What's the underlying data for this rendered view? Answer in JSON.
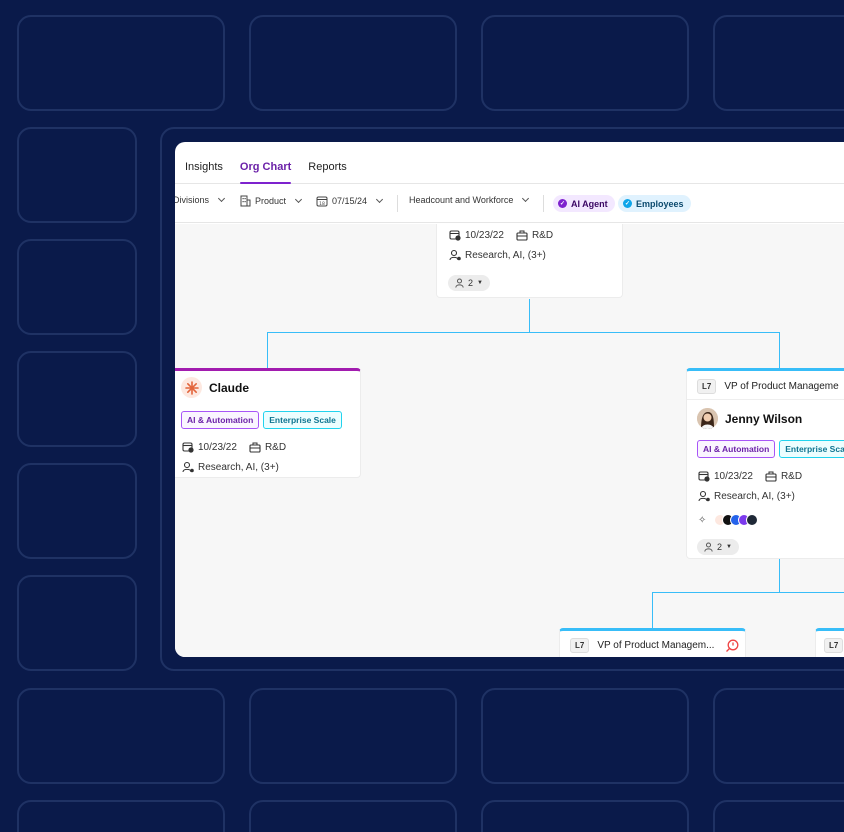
{
  "tabs": [
    {
      "label": "Insights"
    },
    {
      "label": "Org Chart",
      "active": true
    },
    {
      "label": "Reports"
    }
  ],
  "filters": {
    "divisions": "Divisions",
    "product": "Product",
    "date": "07/15/24",
    "headcount": "Headcount and Workforce",
    "chip_ai": "AI Agent",
    "chip_employees": "Employees"
  },
  "cards": {
    "top": {
      "date": "10/23/22",
      "dept": "R&D",
      "skills": "Research, AI, (3+)",
      "reports": "2"
    },
    "claude": {
      "name": "Claude",
      "tag_1": "AI & Automation",
      "tag_2": "Enterprise Scale",
      "date": "10/23/22",
      "dept": "R&D",
      "skills": "Research, AI, (3+)"
    },
    "jenny": {
      "level": "L7",
      "title": "VP of Product Manageme",
      "name": "Jenny Wilson",
      "tag_1": "AI & Automation",
      "tag_2": "Enterprise Sca",
      "date": "10/23/22",
      "dept": "R&D",
      "skills": "Research, AI, (3+)",
      "reports": "2"
    },
    "bottom_left": {
      "level": "L7",
      "title": "VP of Product Managem..."
    },
    "bottom_right": {
      "level": "L7"
    }
  },
  "colors": {
    "background": "#0a1a4a",
    "tile_border": "#1f3264",
    "accent_purple": "#7e22ce",
    "accent_cyan": "#38bdf8"
  }
}
